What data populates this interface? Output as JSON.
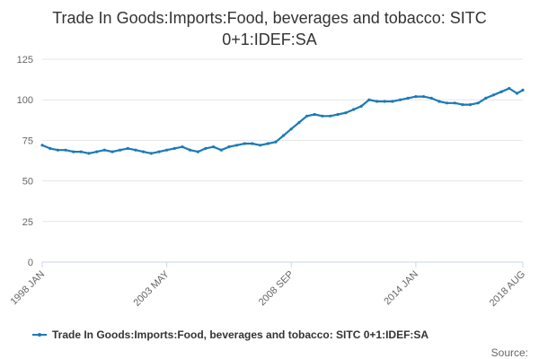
{
  "chart_data": {
    "type": "line",
    "title_line1": "Trade In Goods:Imports:Food, beverages and tobacco: SITC",
    "title_line2": "0+1:IDEF:SA",
    "x_tick_labels": [
      "1998 JAN",
      "2003 MAY",
      "2008 SEP",
      "2014 JAN",
      "2018 AUG"
    ],
    "x_range": [
      "1998 JAN",
      "2018 AUG"
    ],
    "y_ticks": [
      0,
      25,
      50,
      75,
      100,
      125
    ],
    "ylim": [
      0,
      125
    ],
    "grid": "horizontal",
    "legend_position": "bottom",
    "source_label": "Source:",
    "colors": {
      "series": "#1a7ab8",
      "grid": "#e6e6e6",
      "axis": "#ccd6eb"
    },
    "series": [
      {
        "name": "Trade In Goods:Imports:Food, beverages and tobacco: SITC 0+1:IDEF:SA",
        "points": [
          [
            "1998 JAN",
            72
          ],
          [
            "1998 MAY",
            70
          ],
          [
            "1998 SEP",
            69
          ],
          [
            "1999 JAN",
            69
          ],
          [
            "1999 MAY",
            68
          ],
          [
            "1999 SEP",
            68
          ],
          [
            "2000 JAN",
            67
          ],
          [
            "2000 MAY",
            68
          ],
          [
            "2000 SEP",
            69
          ],
          [
            "2001 JAN",
            68
          ],
          [
            "2001 MAY",
            69
          ],
          [
            "2001 SEP",
            70
          ],
          [
            "2002 JAN",
            69
          ],
          [
            "2002 MAY",
            68
          ],
          [
            "2002 SEP",
            67
          ],
          [
            "2003 JAN",
            68
          ],
          [
            "2003 MAY",
            69
          ],
          [
            "2003 SEP",
            70
          ],
          [
            "2004 JAN",
            71
          ],
          [
            "2004 MAY",
            69
          ],
          [
            "2004 SEP",
            68
          ],
          [
            "2005 JAN",
            70
          ],
          [
            "2005 MAY",
            71
          ],
          [
            "2005 SEP",
            69
          ],
          [
            "2006 JAN",
            71
          ],
          [
            "2006 MAY",
            72
          ],
          [
            "2006 SEP",
            73
          ],
          [
            "2007 JAN",
            73
          ],
          [
            "2007 MAY",
            72
          ],
          [
            "2007 SEP",
            73
          ],
          [
            "2008 JAN",
            74
          ],
          [
            "2008 MAY",
            78
          ],
          [
            "2008 SEP",
            82
          ],
          [
            "2009 JAN",
            86
          ],
          [
            "2009 MAY",
            90
          ],
          [
            "2009 SEP",
            91
          ],
          [
            "2010 JAN",
            90
          ],
          [
            "2010 MAY",
            90
          ],
          [
            "2010 SEP",
            91
          ],
          [
            "2011 JAN",
            92
          ],
          [
            "2011 MAY",
            94
          ],
          [
            "2011 SEP",
            96
          ],
          [
            "2012 JAN",
            100
          ],
          [
            "2012 MAY",
            99
          ],
          [
            "2012 SEP",
            99
          ],
          [
            "2013 JAN",
            99
          ],
          [
            "2013 MAY",
            100
          ],
          [
            "2013 SEP",
            101
          ],
          [
            "2014 JAN",
            102
          ],
          [
            "2014 MAY",
            102
          ],
          [
            "2014 SEP",
            101
          ],
          [
            "2015 JAN",
            99
          ],
          [
            "2015 MAY",
            98
          ],
          [
            "2015 SEP",
            98
          ],
          [
            "2016 JAN",
            97
          ],
          [
            "2016 MAY",
            97
          ],
          [
            "2016 SEP",
            98
          ],
          [
            "2017 JAN",
            101
          ],
          [
            "2017 MAY",
            103
          ],
          [
            "2017 SEP",
            105
          ],
          [
            "2018 JAN",
            107
          ],
          [
            "2018 MAY",
            104
          ],
          [
            "2018 AUG",
            106
          ]
        ]
      }
    ]
  }
}
